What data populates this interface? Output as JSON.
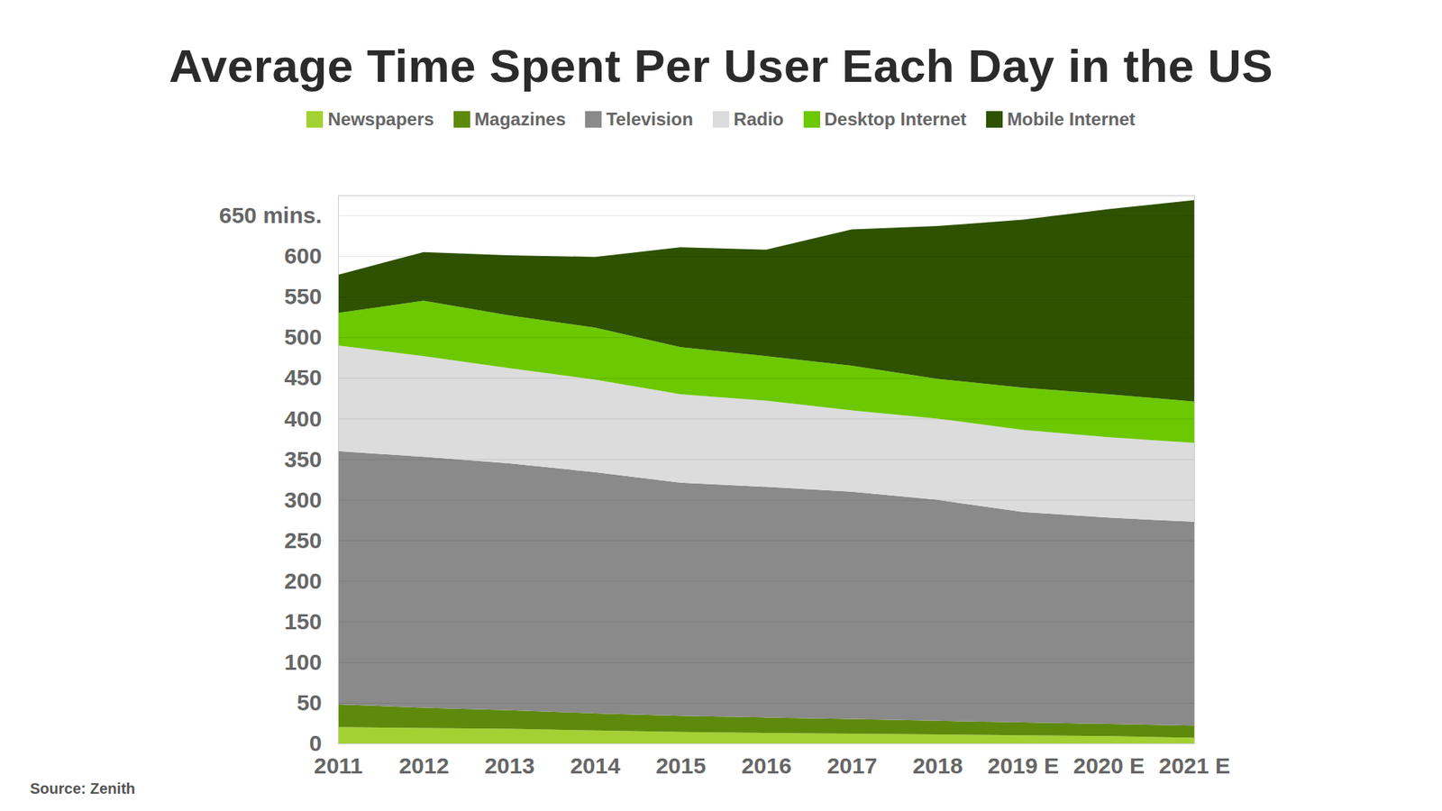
{
  "chart_data": {
    "type": "area",
    "stacked": true,
    "title": "Average Time Spent Per User Each Day in the US",
    "caption": "Source: Zenith",
    "categories": [
      "2011",
      "2012",
      "2013",
      "2014",
      "2015",
      "2016",
      "2017",
      "2018",
      "2019 E",
      "2020 E",
      "2021 E"
    ],
    "series": [
      {
        "name": "Newspapers",
        "color": "#a3d133",
        "values": [
          20,
          19,
          18,
          16,
          14,
          13,
          12,
          11,
          10,
          9,
          7
        ]
      },
      {
        "name": "Magazines",
        "color": "#5e8a0c",
        "values": [
          28,
          25,
          23,
          21,
          20,
          19,
          18,
          17,
          16,
          15,
          15
        ]
      },
      {
        "name": "Television",
        "color": "#8a8a8a",
        "values": [
          312,
          309,
          304,
          297,
          287,
          284,
          280,
          272,
          259,
          254,
          251
        ]
      },
      {
        "name": "Radio",
        "color": "#dcdcdc",
        "values": [
          130,
          124,
          117,
          114,
          109,
          106,
          100,
          100,
          101,
          99,
          97
        ]
      },
      {
        "name": "Desktop Internet",
        "color": "#6cc800",
        "values": [
          40,
          68,
          65,
          64,
          58,
          55,
          55,
          49,
          52,
          53,
          51
        ]
      },
      {
        "name": "Mobile Internet",
        "color": "#2e5200",
        "values": [
          47,
          60,
          74,
          87,
          123,
          131,
          168,
          188,
          207,
          228,
          248
        ]
      }
    ],
    "ylim": [
      0,
      675
    ],
    "yticks": [
      0,
      50,
      100,
      150,
      200,
      250,
      300,
      350,
      400,
      450,
      500,
      550,
      600,
      {
        "value": 650,
        "label": "650 mins."
      }
    ],
    "grid": true,
    "legend": "top"
  }
}
